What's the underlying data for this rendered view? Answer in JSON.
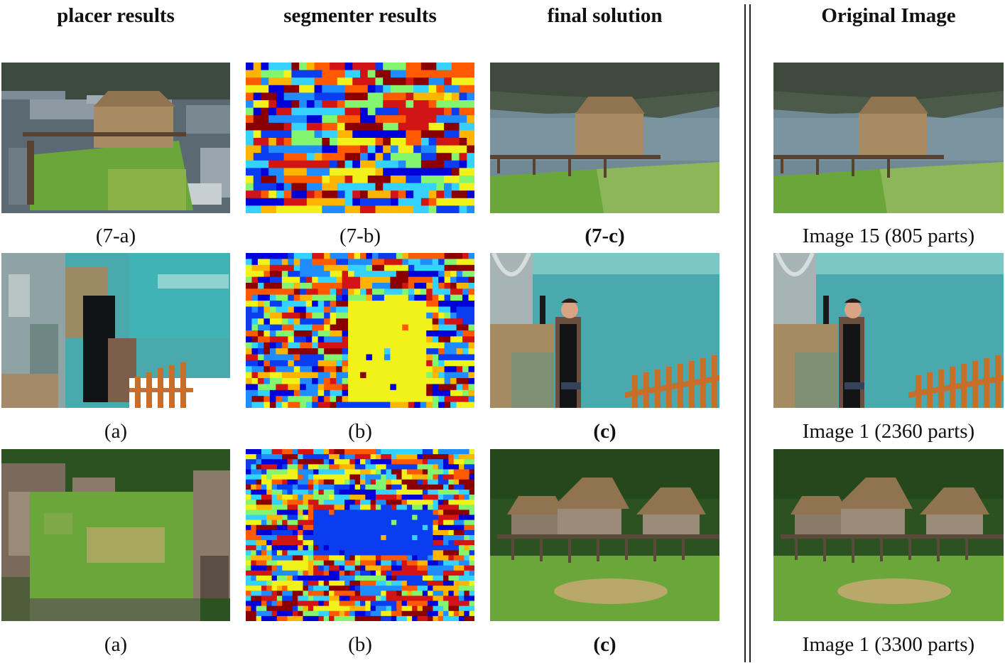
{
  "figure": {
    "headers": {
      "placer": "placer results",
      "segmenter": "segmenter results",
      "final": "final solution",
      "original": "Original Image"
    },
    "rows": [
      {
        "placer_caption": "(7-a)",
        "segmenter_caption": "(7-b)",
        "final_caption": "(7-c)",
        "original_caption": "Image 15 (805 parts)"
      },
      {
        "placer_caption": "(a)",
        "segmenter_caption": "(b)",
        "final_caption": "(c)",
        "original_caption": "Image 1 (2360 parts)"
      },
      {
        "placer_caption": "(a)",
        "segmenter_caption": "(b)",
        "final_caption": "(c)",
        "original_caption": "Image 1 (3300 parts)"
      }
    ],
    "colors": {
      "segment_palette": [
        "#0000d8",
        "#0a3cf0",
        "#1f8cff",
        "#35d2ff",
        "#84f56e",
        "#f2f21b",
        "#ffb400",
        "#ff5a00",
        "#d21414",
        "#8a0000"
      ],
      "lake_water": "#6f8a95",
      "turquoise_water": "#49a9ad",
      "grass": "#6aa63a",
      "thatch": "#a88a63",
      "forest": "#2b5220"
    }
  }
}
